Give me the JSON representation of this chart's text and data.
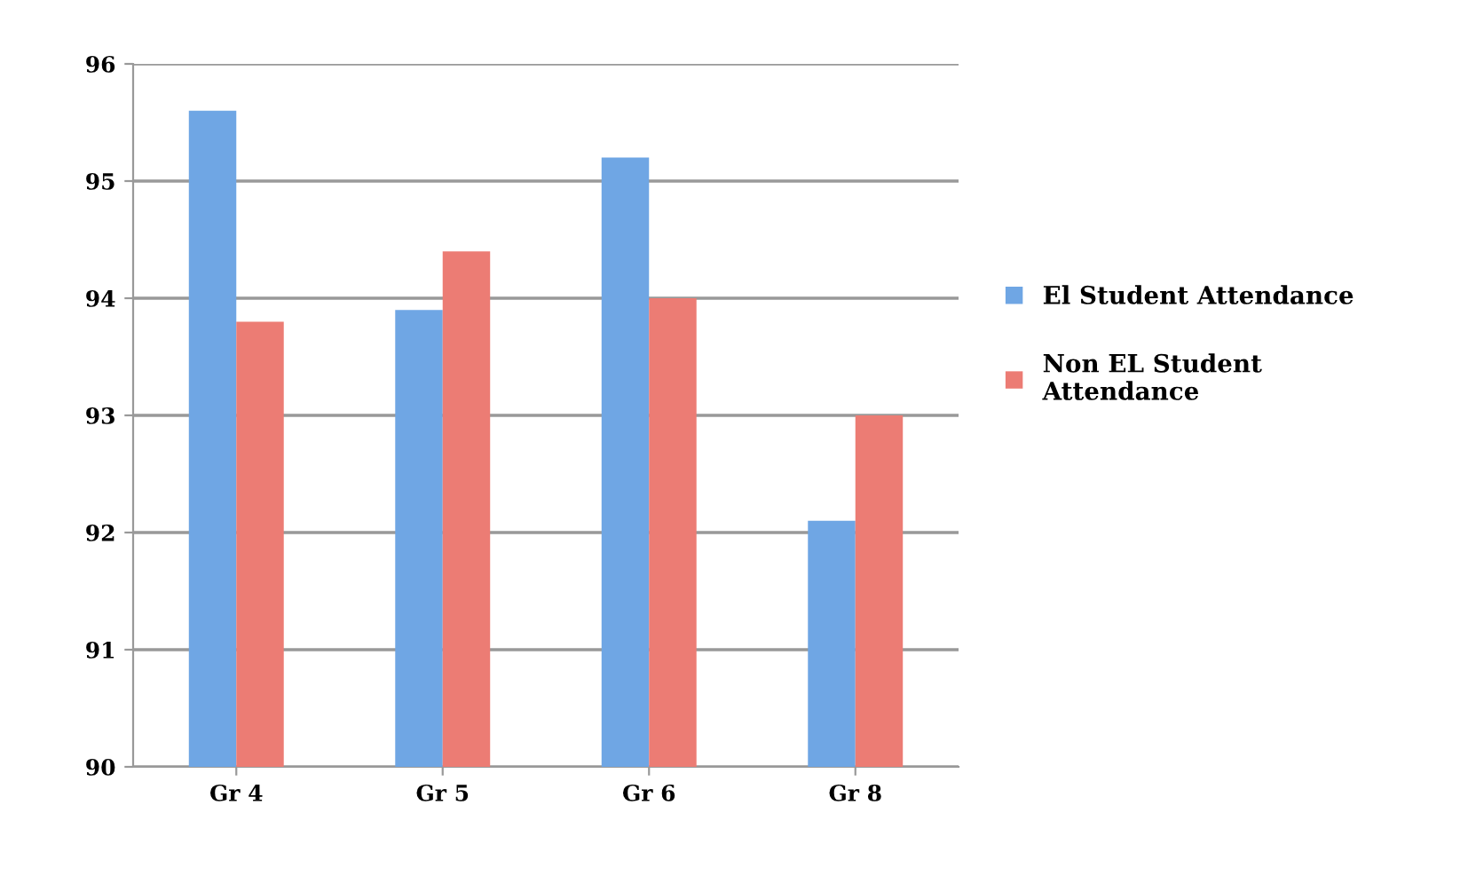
{
  "chart_data": {
    "type": "bar",
    "categories": [
      "Gr 4",
      "Gr 5",
      "Gr 6",
      "Gr 8"
    ],
    "series": [
      {
        "name": "El Student Attendance",
        "color": "#6fa6e4",
        "values": [
          95.6,
          93.9,
          95.2,
          92.1
        ]
      },
      {
        "name": "Non EL Student\nAttendance",
        "color": "#ec7c74",
        "values": [
          93.8,
          94.4,
          94.0,
          93.0
        ]
      }
    ],
    "ylim": [
      90,
      96
    ],
    "yticks": [
      90,
      91,
      92,
      93,
      94,
      95,
      96
    ],
    "grid": "y",
    "legend": "right"
  }
}
